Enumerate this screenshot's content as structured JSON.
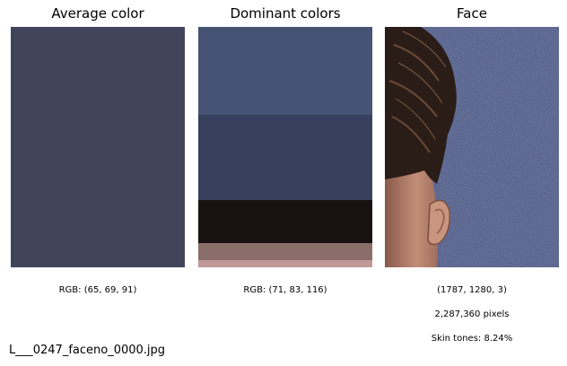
{
  "panels": {
    "average": {
      "title": "Average color",
      "caption": "RGB: (65, 69, 91)",
      "color": "#41455b"
    },
    "dominant": {
      "title": "Dominant colors",
      "caption": "RGB: (71, 83, 116)",
      "bands": [
        {
          "color": "#475374",
          "fraction": 0.365
        },
        {
          "color": "#37405d",
          "fraction": 0.355
        },
        {
          "color": "#181312",
          "fraction": 0.18
        },
        {
          "color": "#8a6e6a",
          "fraction": 0.07
        },
        {
          "color": "#c09898",
          "fraction": 0.03
        }
      ]
    },
    "face": {
      "title": "Face",
      "shape": "(1787, 1280, 3)",
      "pixels": "2,287,360 pixels",
      "skin": "Skin tones: 8.24%",
      "background_color": "#4a5580"
    }
  },
  "filename": "L___0247_faceno_0000.jpg"
}
